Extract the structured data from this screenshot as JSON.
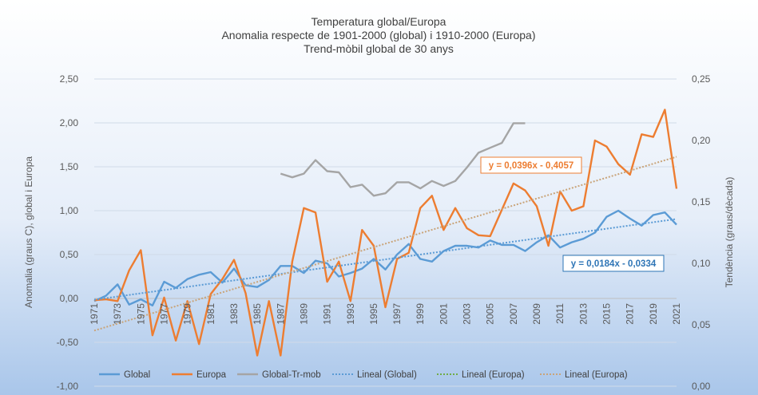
{
  "chart_data": {
    "type": "line",
    "title": [
      "Temperatura global/Europa",
      "Anomalia respecte de 1901-2000 (global) i 1910-2000 (Europa)",
      "Trend-mòbil global de 30 anys"
    ],
    "ylabel": "Anomalia (graus C), global i Europa",
    "y2label": "Tendència (graus/dècada)",
    "ylim": [
      -1.0,
      2.5
    ],
    "y2lim": [
      0.0,
      0.25
    ],
    "yticks": [
      "-1,00",
      "-0,50",
      "0,00",
      "0,50",
      "1,00",
      "1,50",
      "2,00",
      "2,50"
    ],
    "y2ticks": [
      "0,00",
      "0,05",
      "0,10",
      "0,15",
      "0,20",
      "0,25"
    ],
    "xlim": [
      1971,
      2021
    ],
    "xticks": [
      "1971",
      "1973",
      "1975",
      "1977",
      "1979",
      "1981",
      "1983",
      "1985",
      "1987",
      "1989",
      "1991",
      "1993",
      "1995",
      "1997",
      "1999",
      "2001",
      "2003",
      "2005",
      "2007",
      "2009",
      "2011",
      "2013",
      "2015",
      "2017",
      "2019",
      "2021"
    ],
    "x": [
      1971,
      1972,
      1973,
      1974,
      1975,
      1976,
      1977,
      1978,
      1979,
      1980,
      1981,
      1982,
      1983,
      1984,
      1985,
      1986,
      1987,
      1988,
      1989,
      1990,
      1991,
      1992,
      1993,
      1994,
      1995,
      1996,
      1997,
      1998,
      1999,
      2000,
      2001,
      2002,
      2003,
      2004,
      2005,
      2006,
      2007,
      2008,
      2009,
      2010,
      2011,
      2012,
      2013,
      2014,
      2015,
      2016,
      2017,
      2018,
      2019,
      2020,
      2021
    ],
    "series": [
      {
        "name": "Global",
        "axis": "left",
        "color": "#5b9bd5",
        "values": [
          -0.03,
          0.03,
          0.16,
          -0.07,
          -0.01,
          -0.08,
          0.19,
          0.12,
          0.22,
          0.27,
          0.3,
          0.18,
          0.34,
          0.15,
          0.13,
          0.21,
          0.37,
          0.37,
          0.29,
          0.43,
          0.4,
          0.25,
          0.29,
          0.34,
          0.45,
          0.33,
          0.5,
          0.62,
          0.45,
          0.42,
          0.54,
          0.6,
          0.6,
          0.58,
          0.66,
          0.61,
          0.61,
          0.54,
          0.64,
          0.72,
          0.58,
          0.64,
          0.68,
          0.75,
          0.93,
          1.0,
          0.91,
          0.83,
          0.95,
          0.98,
          0.84
        ]
      },
      {
        "name": "Europa",
        "axis": "left",
        "color": "#ed7d31",
        "values": [
          -0.02,
          -0.01,
          -0.03,
          0.32,
          0.55,
          -0.42,
          0.01,
          -0.48,
          -0.03,
          -0.52,
          0.05,
          0.22,
          0.44,
          0.06,
          -0.65,
          -0.03,
          -0.65,
          0.42,
          1.03,
          0.98,
          0.19,
          0.42,
          -0.03,
          0.78,
          0.6,
          -0.1,
          0.45,
          0.52,
          1.03,
          1.17,
          0.78,
          1.03,
          0.8,
          0.72,
          0.71,
          1.01,
          1.31,
          1.23,
          1.05,
          0.6,
          1.22,
          1.0,
          1.05,
          1.8,
          1.73,
          1.53,
          1.41,
          1.87,
          1.84,
          2.15,
          1.25
        ]
      },
      {
        "name": "Global-Tr-mob",
        "axis": "right",
        "color": "#a5a5a5",
        "values": [
          null,
          null,
          null,
          null,
          null,
          null,
          null,
          null,
          null,
          null,
          null,
          null,
          null,
          null,
          null,
          null,
          0.173,
          0.17,
          0.173,
          0.184,
          0.175,
          0.174,
          0.162,
          0.164,
          0.155,
          0.157,
          0.166,
          0.166,
          0.161,
          0.167,
          0.163,
          0.167,
          0.178,
          0.19,
          0.194,
          0.198,
          0.214,
          0.214,
          null,
          null,
          null,
          null,
          null,
          null,
          null,
          null,
          null,
          null,
          null,
          null,
          null
        ]
      },
      {
        "name": "Lineal  (Global)",
        "axis": "left",
        "color": "#5b9bd5",
        "dashed": true,
        "trend": {
          "slope": 0.0184,
          "intercept": -0.0334
        }
      },
      {
        "name": "Lineal  (Europa)",
        "axis": "left",
        "color": "#70ad47",
        "dashed": true
      },
      {
        "name": "Lineal  (Europa)",
        "axis": "left",
        "color": "#c9a479",
        "dashed": true,
        "trend": {
          "slope": 0.0396,
          "intercept": -0.4057
        }
      }
    ],
    "annotations": [
      {
        "text": "y = 0,0396x - 0,4057",
        "color": "#ed7d31"
      },
      {
        "text": "y = 0,0184x - 0,0334",
        "color": "#2e75b6"
      }
    ],
    "legend": "bottom"
  }
}
